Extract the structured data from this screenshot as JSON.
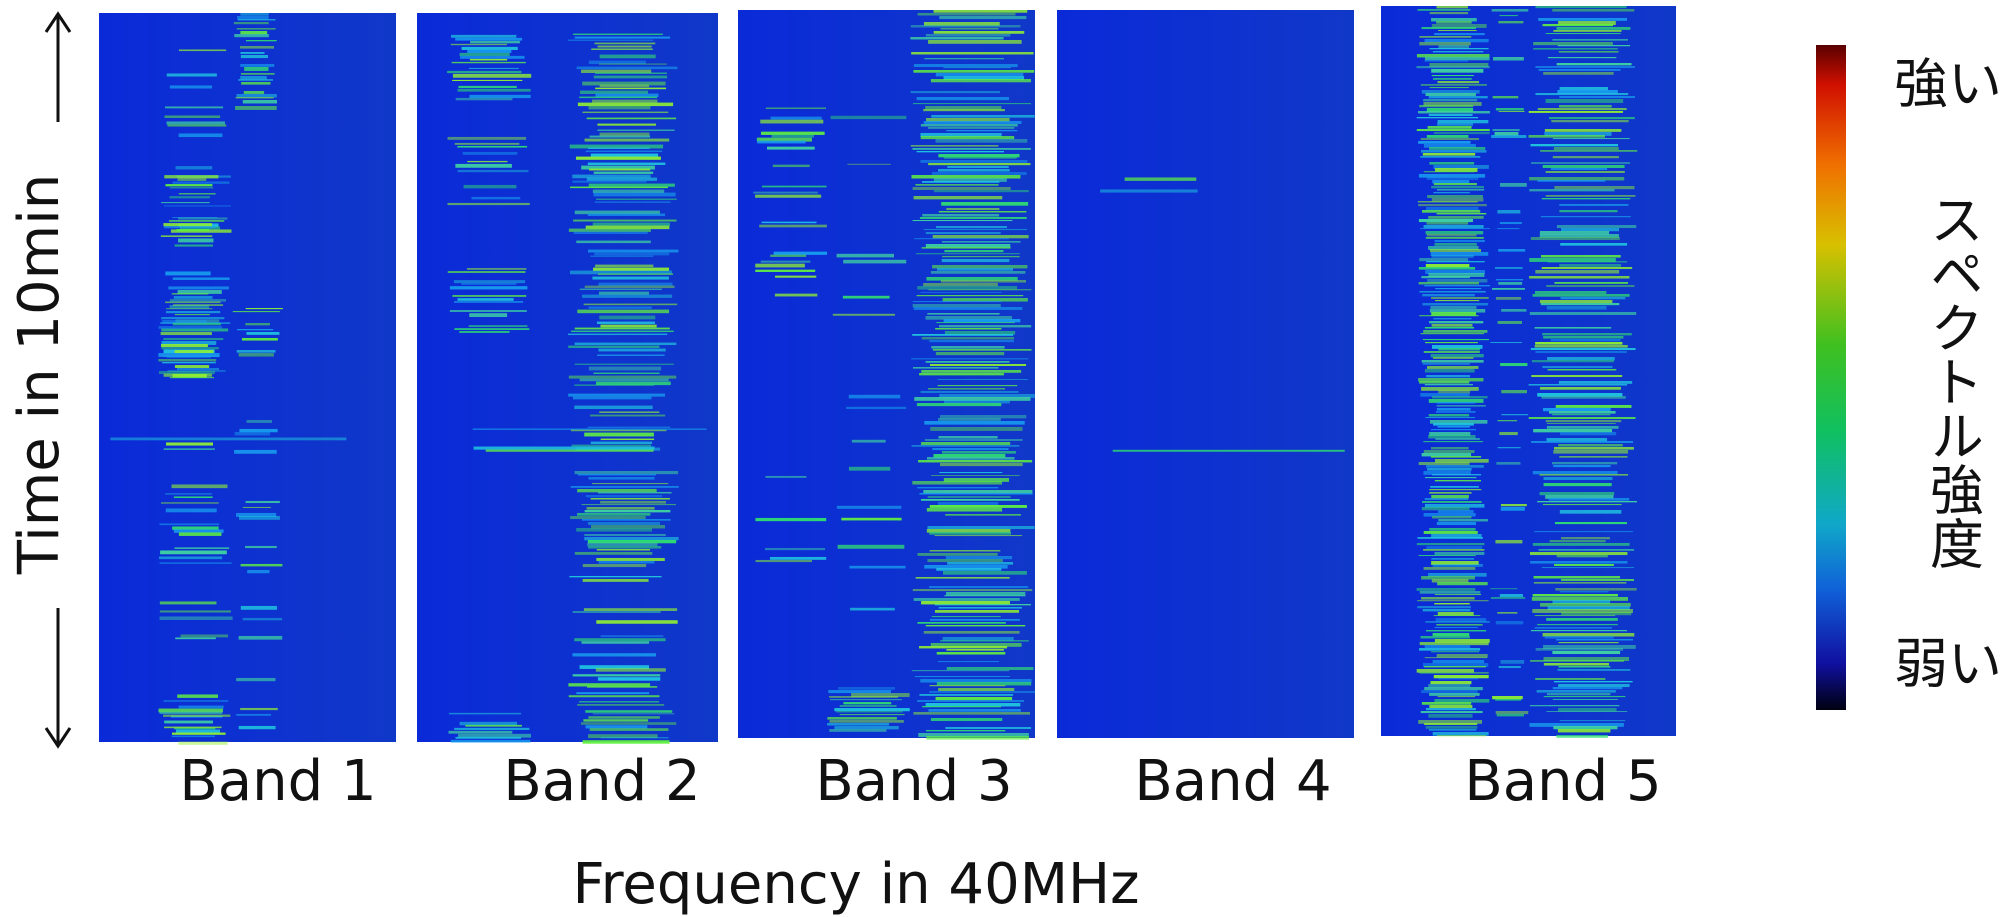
{
  "y_axis_label": "Time in 10min",
  "x_axis_label": "Frequency in 40MHz",
  "panels": [
    {
      "label": "Band 1"
    },
    {
      "label": "Band 2"
    },
    {
      "label": "Band 3"
    },
    {
      "label": "Band 4"
    },
    {
      "label": "Band 5"
    }
  ],
  "colorbar": {
    "high_label": "強い",
    "title": "スペクトル強度",
    "low_label": "弱い"
  }
}
